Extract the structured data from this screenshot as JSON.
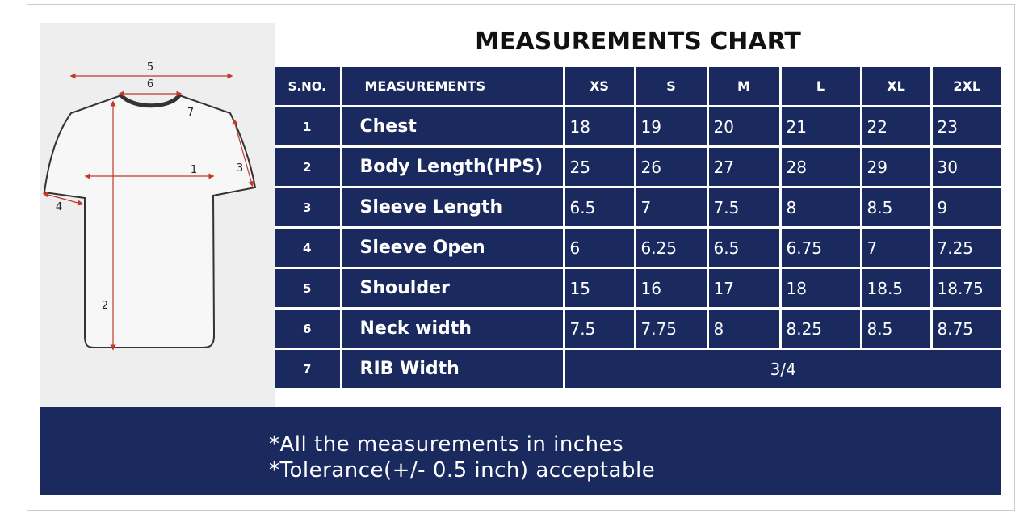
{
  "title": "MEASUREMENTS CHART",
  "diagram": {
    "labels": [
      "1",
      "2",
      "3",
      "4",
      "5",
      "6",
      "7"
    ]
  },
  "table": {
    "headers": [
      "S.NO.",
      "MEASUREMENTS",
      "XS",
      "S",
      "M",
      "L",
      "XL",
      "2XL"
    ],
    "rows": [
      [
        "1",
        "Chest",
        "18",
        "19",
        "20",
        "21",
        "22",
        "23"
      ],
      [
        "2",
        "Body Length(HPS)",
        "25",
        "26",
        "27",
        "28",
        "29",
        "30"
      ],
      [
        "3",
        "Sleeve Length",
        "6.5",
        "7",
        "7.5",
        "8",
        "8.5",
        "9"
      ],
      [
        "4",
        "Sleeve Open",
        "6",
        "6.25",
        "6.5",
        "6.75",
        "7",
        "7.25"
      ],
      [
        "5",
        "Shoulder",
        "15",
        "16",
        "17",
        "18",
        "18.5",
        "18.75"
      ],
      [
        "6",
        "Neck width",
        "7.5",
        "7.75",
        "8",
        "8.25",
        "8.5",
        "8.75"
      ],
      [
        "7",
        "RIB Width",
        "3/4"
      ]
    ]
  },
  "notes": [
    "*All the measurements in inches",
    "*Tolerance(+/- 0.5 inch) acceptable"
  ]
}
